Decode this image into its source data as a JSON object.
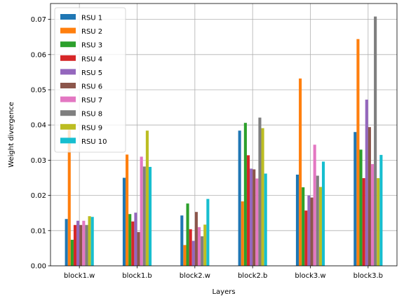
{
  "chart_data": {
    "type": "bar",
    "xlabel": "Layers",
    "ylabel": "Weight divergence",
    "ylim": [
      0,
      0.0745
    ],
    "yticks": [
      "0.00",
      "0.01",
      "0.02",
      "0.03",
      "0.04",
      "0.05",
      "0.06",
      "0.07"
    ],
    "grid": true,
    "legend_position": "top-left",
    "categories": [
      "block1.w",
      "block1.b",
      "block2.w",
      "block2.b",
      "block3.w",
      "block3.b"
    ],
    "series": [
      {
        "name": "RSU 1",
        "color": "#1f77b4",
        "values": [
          0.0133,
          0.025,
          0.0143,
          0.0384,
          0.0259,
          0.038
        ]
      },
      {
        "name": "RSU 2",
        "color": "#ff7f0e",
        "values": [
          0.0386,
          0.0316,
          0.0059,
          0.0183,
          0.0532,
          0.0644
        ]
      },
      {
        "name": "RSU 3",
        "color": "#2ca02c",
        "values": [
          0.0074,
          0.0147,
          0.0177,
          0.0406,
          0.0223,
          0.033
        ]
      },
      {
        "name": "RSU 4",
        "color": "#d62728",
        "values": [
          0.0116,
          0.0126,
          0.0104,
          0.0314,
          0.0157,
          0.0249
        ]
      },
      {
        "name": "RSU 5",
        "color": "#9467bd",
        "values": [
          0.0128,
          0.0151,
          0.0071,
          0.0276,
          0.02,
          0.0472
        ]
      },
      {
        "name": "RSU 6",
        "color": "#8c564b",
        "values": [
          0.0116,
          0.0096,
          0.0153,
          0.0274,
          0.0194,
          0.0394
        ]
      },
      {
        "name": "RSU 7",
        "color": "#e377c2",
        "values": [
          0.0128,
          0.031,
          0.011,
          0.0248,
          0.0344,
          0.0289
        ]
      },
      {
        "name": "RSU 8",
        "color": "#7f7f7f",
        "values": [
          0.0116,
          0.0282,
          0.0084,
          0.0421,
          0.0256,
          0.0708
        ]
      },
      {
        "name": "RSU 9",
        "color": "#bcbd22",
        "values": [
          0.0141,
          0.0384,
          0.0117,
          0.0391,
          0.0224,
          0.0249
        ]
      },
      {
        "name": "RSU 10",
        "color": "#17becf",
        "values": [
          0.0139,
          0.0281,
          0.019,
          0.0262,
          0.0296,
          0.0315
        ]
      }
    ]
  }
}
